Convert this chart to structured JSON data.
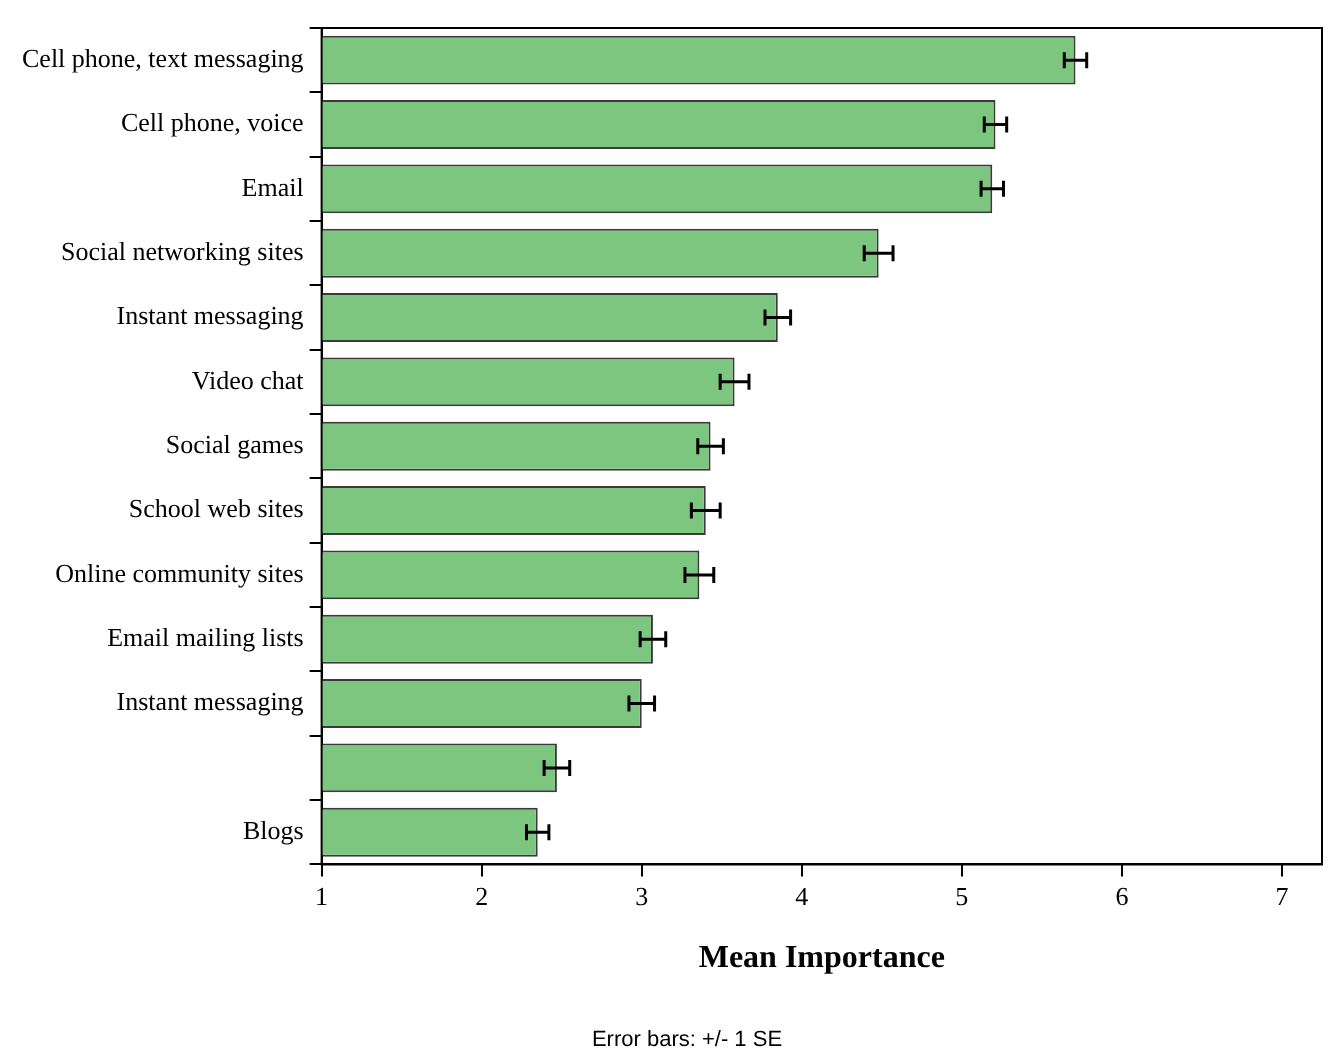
{
  "chart_data": {
    "type": "bar",
    "orientation": "horizontal",
    "xlabel": "Mean Importance",
    "categories": [
      "Cell phone, text messaging",
      "Cell phone, voice",
      "Email",
      "Social networking sites",
      "Instant messaging",
      "Video chat",
      "Social games",
      "School web sites",
      "Online community sites",
      "Email mailing lists",
      "Instant messaging",
      null,
      "Blogs"
    ],
    "values": [
      5.71,
      5.21,
      5.19,
      4.48,
      3.85,
      3.58,
      3.43,
      3.4,
      3.36,
      3.07,
      3.0,
      2.47,
      2.35
    ],
    "errors": [
      0.07,
      0.07,
      0.07,
      0.09,
      0.08,
      0.09,
      0.08,
      0.09,
      0.09,
      0.08,
      0.08,
      0.08,
      0.07
    ],
    "color": "#7dc67f",
    "xlim": [
      1,
      7.25
    ],
    "xticks": [
      1,
      2,
      3,
      4,
      5,
      6,
      7
    ],
    "grid": false,
    "legend": false,
    "annotations": [
      "Error bars: +/- 1 SE"
    ]
  }
}
